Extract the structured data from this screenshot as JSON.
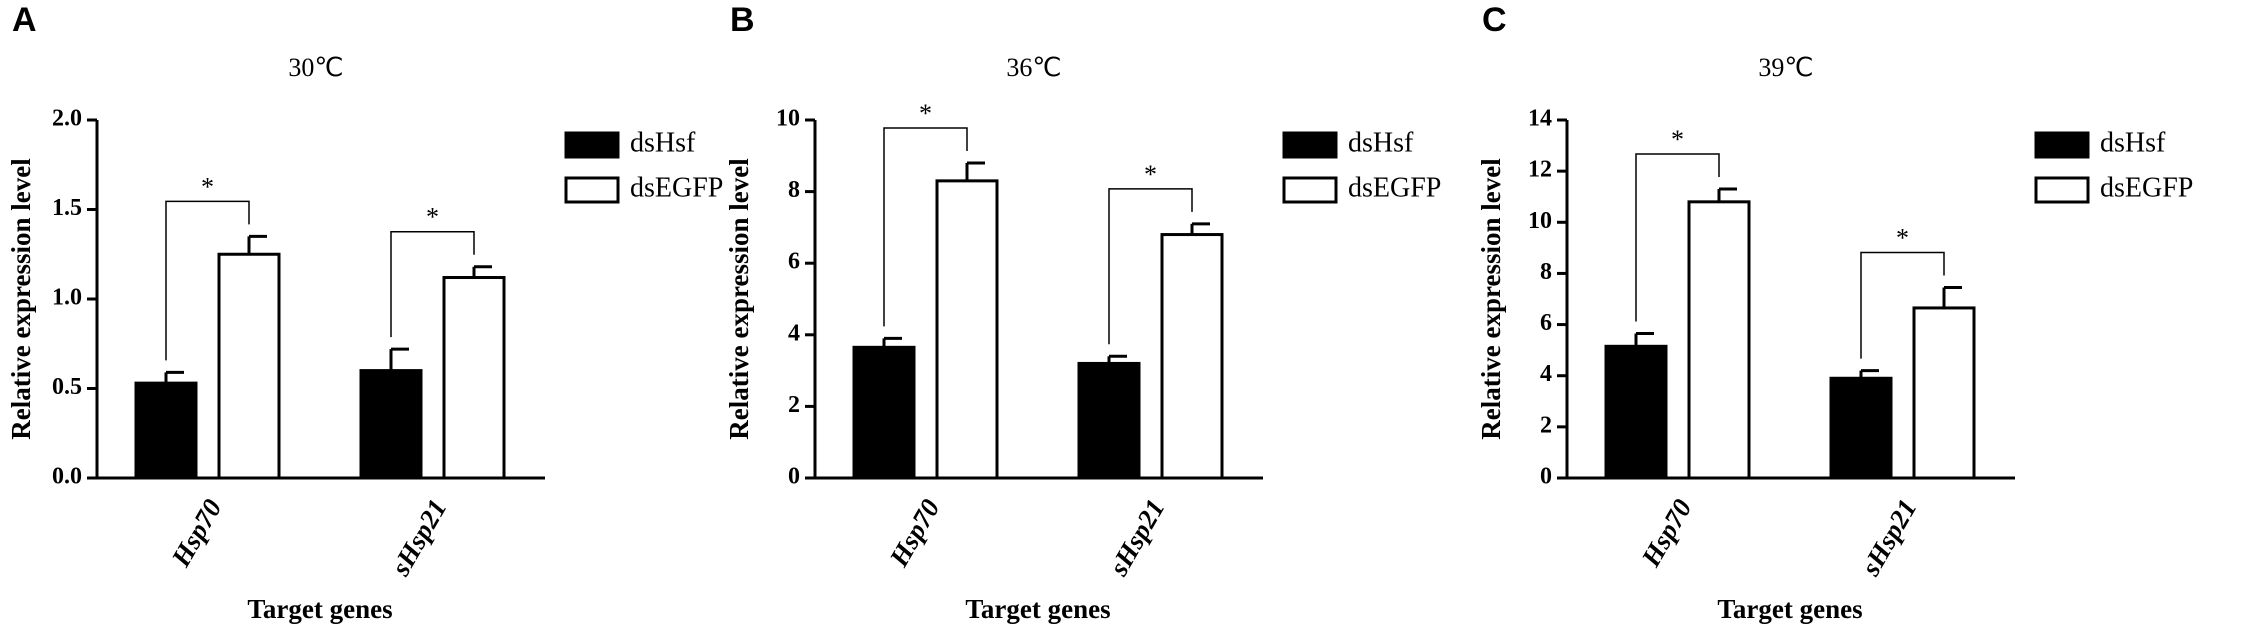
{
  "chart_data": [
    {
      "type": "bar",
      "panel": "A",
      "title": "30℃",
      "ylabel": "Relative expression level",
      "xlabel": "Target genes",
      "categories": [
        "Hsp70",
        "sHsp21"
      ],
      "series": [
        {
          "name": "dsHsf",
          "color": "#000000",
          "values": [
            0.53,
            0.6
          ],
          "errors": [
            0.06,
            0.12
          ]
        },
        {
          "name": "dsEGFP",
          "color": "#ffffff",
          "values": [
            1.25,
            1.12
          ],
          "errors": [
            0.1,
            0.06
          ]
        }
      ],
      "significance": [
        "*",
        "*"
      ],
      "ylim": [
        0,
        2
      ],
      "yticks": [
        {
          "value": 0,
          "label": "0.0"
        },
        0.5,
        {
          "value": 1,
          "label": "1.0"
        },
        1.5,
        {
          "value": 2,
          "label": "2.0"
        }
      ]
    },
    {
      "type": "bar",
      "panel": "B",
      "title": "36℃",
      "ylabel": "Relative expression level",
      "xlabel": "Target genes",
      "categories": [
        "Hsp70",
        "sHsp21"
      ],
      "series": [
        {
          "name": "dsHsf",
          "color": "#000000",
          "values": [
            3.65,
            3.2
          ],
          "errors": [
            0.25,
            0.2
          ]
        },
        {
          "name": "dsEGFP",
          "color": "#ffffff",
          "values": [
            8.3,
            6.8
          ],
          "errors": [
            0.5,
            0.3
          ]
        }
      ],
      "significance": [
        "*",
        "*"
      ],
      "ylim": [
        0,
        10
      ],
      "yticks": [
        0,
        2,
        4,
        6,
        8,
        10
      ]
    },
    {
      "type": "bar",
      "panel": "C",
      "title": "39℃",
      "ylabel": "Relative expression level",
      "xlabel": "Target genes",
      "categories": [
        "Hsp70",
        "sHsp21"
      ],
      "series": [
        {
          "name": "dsHsf",
          "color": "#000000",
          "values": [
            5.15,
            3.9
          ],
          "errors": [
            0.5,
            0.3
          ]
        },
        {
          "name": "dsEGFP",
          "color": "#ffffff",
          "values": [
            10.8,
            6.65
          ],
          "errors": [
            0.5,
            0.8
          ]
        }
      ],
      "significance": [
        "*",
        "*"
      ],
      "ylim": [
        0,
        14
      ],
      "yticks": [
        0,
        2,
        4,
        6,
        8,
        10,
        12,
        14
      ]
    }
  ]
}
